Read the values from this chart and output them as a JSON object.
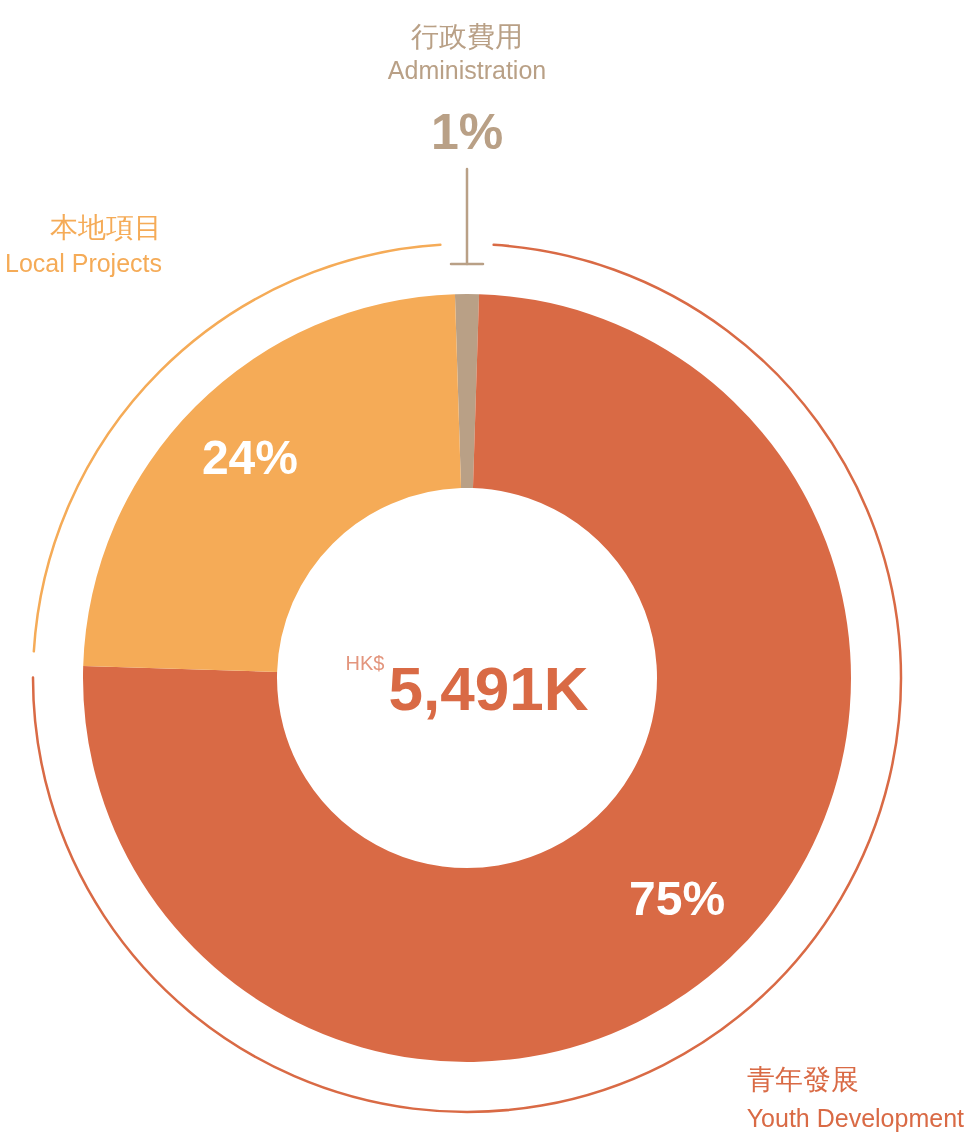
{
  "chart_data": {
    "type": "donut",
    "categories": [
      "行政費用\nAdministration",
      "青年發展\nYouth Development",
      "本地項目\nLocal Projects"
    ],
    "values": [
      1,
      75,
      24
    ],
    "colors": [
      "#b9a086",
      "#d96a45",
      "#f5ab57"
    ],
    "value_labels": [
      "1%",
      "75%",
      "24%"
    ],
    "annotations": [
      "HK$",
      "5,491K"
    ],
    "legend": false
  }
}
